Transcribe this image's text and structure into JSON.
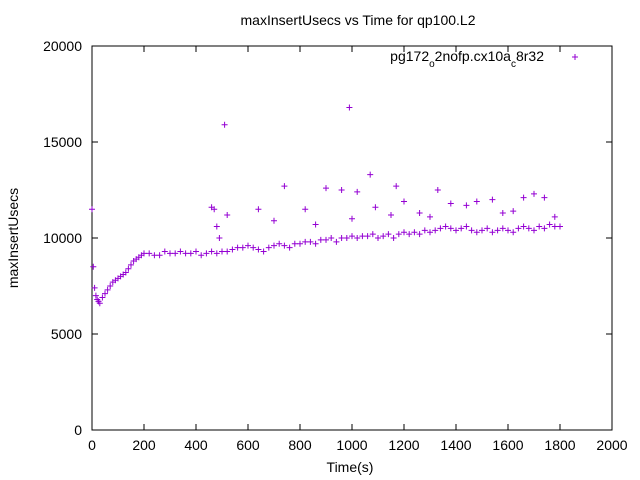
{
  "chart_data": {
    "type": "scatter",
    "title": "maxInsertUsecs vs Time for qp100.L2",
    "xlabel": "Time(s)",
    "ylabel": "maxInsertUsecs",
    "xlim": [
      0,
      2000
    ],
    "ylim": [
      0,
      20000
    ],
    "x_ticks": [
      "0",
      "200",
      "400",
      "600",
      "800",
      "1000",
      "1200",
      "1400",
      "1600",
      "1800",
      "2000"
    ],
    "y_ticks": [
      "0",
      "5000",
      "10000",
      "15000",
      "20000"
    ],
    "grid": false,
    "legend_position": "top-right",
    "marker": "plus",
    "series": [
      {
        "name_parts": [
          "pg172",
          "o",
          "2nofp.cx10a",
          "c",
          "8r32"
        ],
        "color": "#9400d3",
        "points": [
          [
            0,
            11500
          ],
          [
            5,
            8500
          ],
          [
            10,
            7400
          ],
          [
            15,
            7000
          ],
          [
            20,
            6800
          ],
          [
            25,
            6700
          ],
          [
            30,
            6600
          ],
          [
            40,
            6900
          ],
          [
            50,
            7100
          ],
          [
            60,
            7300
          ],
          [
            70,
            7500
          ],
          [
            80,
            7700
          ],
          [
            90,
            7800
          ],
          [
            100,
            7900
          ],
          [
            110,
            8000
          ],
          [
            120,
            8100
          ],
          [
            130,
            8200
          ],
          [
            140,
            8400
          ],
          [
            150,
            8600
          ],
          [
            160,
            8800
          ],
          [
            170,
            8900
          ],
          [
            180,
            9000
          ],
          [
            190,
            9100
          ],
          [
            200,
            9200
          ],
          [
            220,
            9200
          ],
          [
            240,
            9100
          ],
          [
            260,
            9100
          ],
          [
            280,
            9300
          ],
          [
            300,
            9200
          ],
          [
            320,
            9200
          ],
          [
            340,
            9300
          ],
          [
            360,
            9200
          ],
          [
            380,
            9200
          ],
          [
            400,
            9300
          ],
          [
            420,
            9100
          ],
          [
            440,
            9200
          ],
          [
            460,
            9300
          ],
          [
            480,
            9200
          ],
          [
            500,
            9300
          ],
          [
            520,
            9300
          ],
          [
            540,
            9400
          ],
          [
            560,
            9500
          ],
          [
            580,
            9500
          ],
          [
            600,
            9600
          ],
          [
            620,
            9500
          ],
          [
            640,
            9400
          ],
          [
            660,
            9300
          ],
          [
            680,
            9500
          ],
          [
            700,
            9600
          ],
          [
            720,
            9700
          ],
          [
            740,
            9600
          ],
          [
            760,
            9500
          ],
          [
            780,
            9700
          ],
          [
            800,
            9700
          ],
          [
            820,
            9800
          ],
          [
            840,
            9800
          ],
          [
            860,
            9700
          ],
          [
            880,
            9900
          ],
          [
            900,
            9900
          ],
          [
            920,
            10000
          ],
          [
            940,
            9800
          ],
          [
            960,
            10000
          ],
          [
            980,
            10000
          ],
          [
            1000,
            10100
          ],
          [
            1020,
            10000
          ],
          [
            1040,
            10100
          ],
          [
            1060,
            10100
          ],
          [
            1080,
            10200
          ],
          [
            1100,
            10000
          ],
          [
            1120,
            10100
          ],
          [
            1140,
            10200
          ],
          [
            1160,
            10000
          ],
          [
            1180,
            10200
          ],
          [
            1200,
            10300
          ],
          [
            1220,
            10200
          ],
          [
            1240,
            10300
          ],
          [
            1260,
            10200
          ],
          [
            1280,
            10400
          ],
          [
            1300,
            10300
          ],
          [
            1320,
            10400
          ],
          [
            1340,
            10500
          ],
          [
            1360,
            10600
          ],
          [
            1380,
            10500
          ],
          [
            1400,
            10400
          ],
          [
            1420,
            10500
          ],
          [
            1440,
            10600
          ],
          [
            1460,
            10400
          ],
          [
            1480,
            10300
          ],
          [
            1500,
            10400
          ],
          [
            1520,
            10500
          ],
          [
            1540,
            10300
          ],
          [
            1560,
            10400
          ],
          [
            1580,
            10500
          ],
          [
            1600,
            10400
          ],
          [
            1620,
            10300
          ],
          [
            1640,
            10500
          ],
          [
            1660,
            10600
          ],
          [
            1680,
            10500
          ],
          [
            1700,
            10400
          ],
          [
            1720,
            10600
          ],
          [
            1740,
            10500
          ],
          [
            1760,
            10700
          ],
          [
            1780,
            10600
          ],
          [
            1800,
            10600
          ],
          [
            460,
            11600
          ],
          [
            470,
            11500
          ],
          [
            480,
            10600
          ],
          [
            490,
            10000
          ],
          [
            520,
            11200
          ],
          [
            510,
            15900
          ],
          [
            640,
            11500
          ],
          [
            700,
            10900
          ],
          [
            740,
            12700
          ],
          [
            820,
            11500
          ],
          [
            860,
            10700
          ],
          [
            900,
            12600
          ],
          [
            960,
            12500
          ],
          [
            990,
            16800
          ],
          [
            1000,
            11000
          ],
          [
            1020,
            12400
          ],
          [
            1070,
            13300
          ],
          [
            1090,
            11600
          ],
          [
            1150,
            11200
          ],
          [
            1170,
            12700
          ],
          [
            1200,
            11900
          ],
          [
            1260,
            11300
          ],
          [
            1300,
            11100
          ],
          [
            1330,
            12500
          ],
          [
            1380,
            11800
          ],
          [
            1440,
            11700
          ],
          [
            1480,
            11900
          ],
          [
            1540,
            12000
          ],
          [
            1580,
            11300
          ],
          [
            1620,
            11400
          ],
          [
            1660,
            12100
          ],
          [
            1700,
            12300
          ],
          [
            1740,
            12100
          ],
          [
            1780,
            11100
          ]
        ]
      }
    ]
  }
}
